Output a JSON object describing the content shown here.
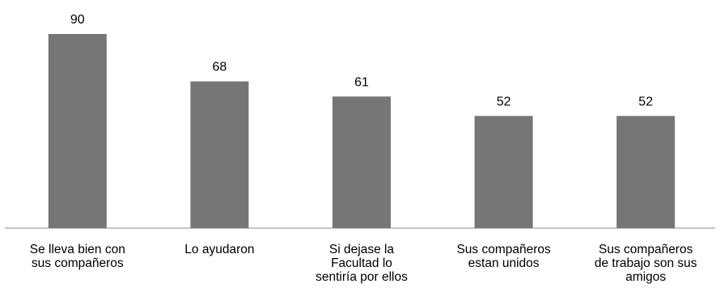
{
  "chart_data": {
    "type": "bar",
    "categories": [
      [
        "Se lleva bien con",
        "sus compañeros"
      ],
      [
        "Lo ayudaron"
      ],
      [
        "Si dejase la",
        "Facultad lo",
        "sentiría por ellos"
      ],
      [
        "Sus compañeros",
        "estan unidos"
      ],
      [
        "Sus compañeros",
        "de trabajo son sus",
        "amigos"
      ]
    ],
    "values": [
      90,
      68,
      61,
      52,
      52
    ],
    "value_labels": [
      "90",
      "68",
      "61",
      "52",
      "52"
    ],
    "ylim": [
      0,
      100
    ],
    "grid": false,
    "bar_color": "#767676"
  }
}
